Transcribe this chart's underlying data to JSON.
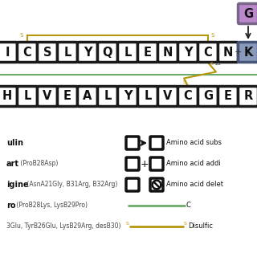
{
  "background_color": "#ffffff",
  "chain_a_letters": [
    "I",
    "C",
    "S",
    "L",
    "Y",
    "Q",
    "L",
    "E",
    "N",
    "Y",
    "C",
    "N"
  ],
  "chain_b_letters": [
    "H",
    "L",
    "V",
    "E",
    "A",
    "L",
    "Y",
    "L",
    "V",
    "C",
    "G",
    "E",
    "R"
  ],
  "disulfide_color": "#b8960c",
  "green_line_color": "#6aaa6a",
  "box_edge_color": "#1a1a1a",
  "box_edge_width": 2.5,
  "letter_color": "#111111",
  "K_face_color": "#8899bb",
  "K_edge_color": "#445577",
  "G_face_color": "#bb88cc",
  "G_edge_color": "#776688",
  "label_bold_size": 7,
  "label_small_size": 5.5,
  "legend_sym_size": 0.038,
  "legend_text_size": 6.0
}
